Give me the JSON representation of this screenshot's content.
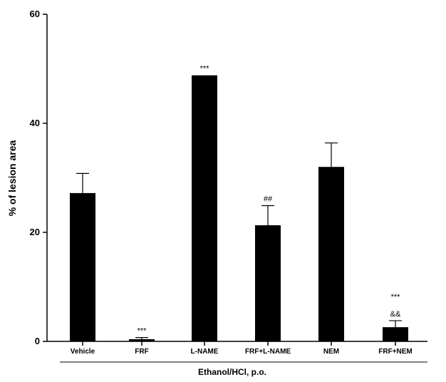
{
  "chart_data": {
    "type": "bar",
    "categories": [
      "Vehicle",
      "FRF",
      "L-NAME",
      "FRF+L-NAME",
      "NEM",
      "FRF+NEM"
    ],
    "values": [
      27.2,
      0.4,
      48.8,
      21.3,
      32.0,
      2.6
    ],
    "errors": [
      3.6,
      0.3,
      0.0,
      3.6,
      4.4,
      1.2
    ],
    "annotations": [
      "",
      "***",
      "***",
      "##",
      "",
      "***\n&&"
    ],
    "ylabel": "% of lesion area",
    "group_label": "Ethanol/HCl, p.o.",
    "ylim": [
      0,
      60
    ],
    "yticks": [
      0,
      20,
      40,
      60
    ],
    "bar_color": "#000000",
    "grid": false,
    "legend": "none"
  }
}
